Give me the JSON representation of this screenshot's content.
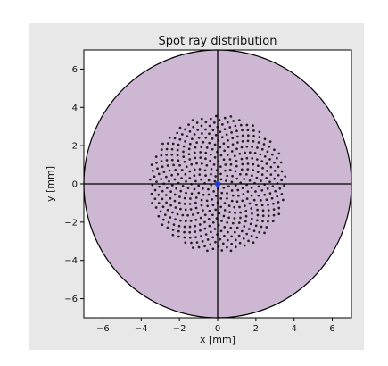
{
  "chart_data": {
    "type": "scatter",
    "title": "Spot ray distribution",
    "xlabel": "x [mm]",
    "ylabel": "y [mm]",
    "xlim": [
      -7.0,
      7.0
    ],
    "ylim": [
      -7.0,
      7.0
    ],
    "xticks": [
      -6,
      -4,
      -2,
      0,
      2,
      4,
      6
    ],
    "yticks": [
      -6,
      -4,
      -2,
      0,
      2,
      4,
      6
    ],
    "grid": false,
    "aperture_radius": 7.0,
    "spot_extent_radius": 3.6,
    "spot_points_approx": 500,
    "spot_pattern": "phyllotaxis (uniform spiral)",
    "chief_ray": {
      "x": 0,
      "y": 0
    },
    "crosshair_lines": [
      {
        "x": 0
      },
      {
        "y": 0
      }
    ],
    "colors": {
      "aperture_fill": "#cdb7d3",
      "points": "#1f1f1f",
      "chief_ray": "#1d3fd8",
      "lines": "#000000",
      "panel_background": "#e8e8e8"
    }
  }
}
